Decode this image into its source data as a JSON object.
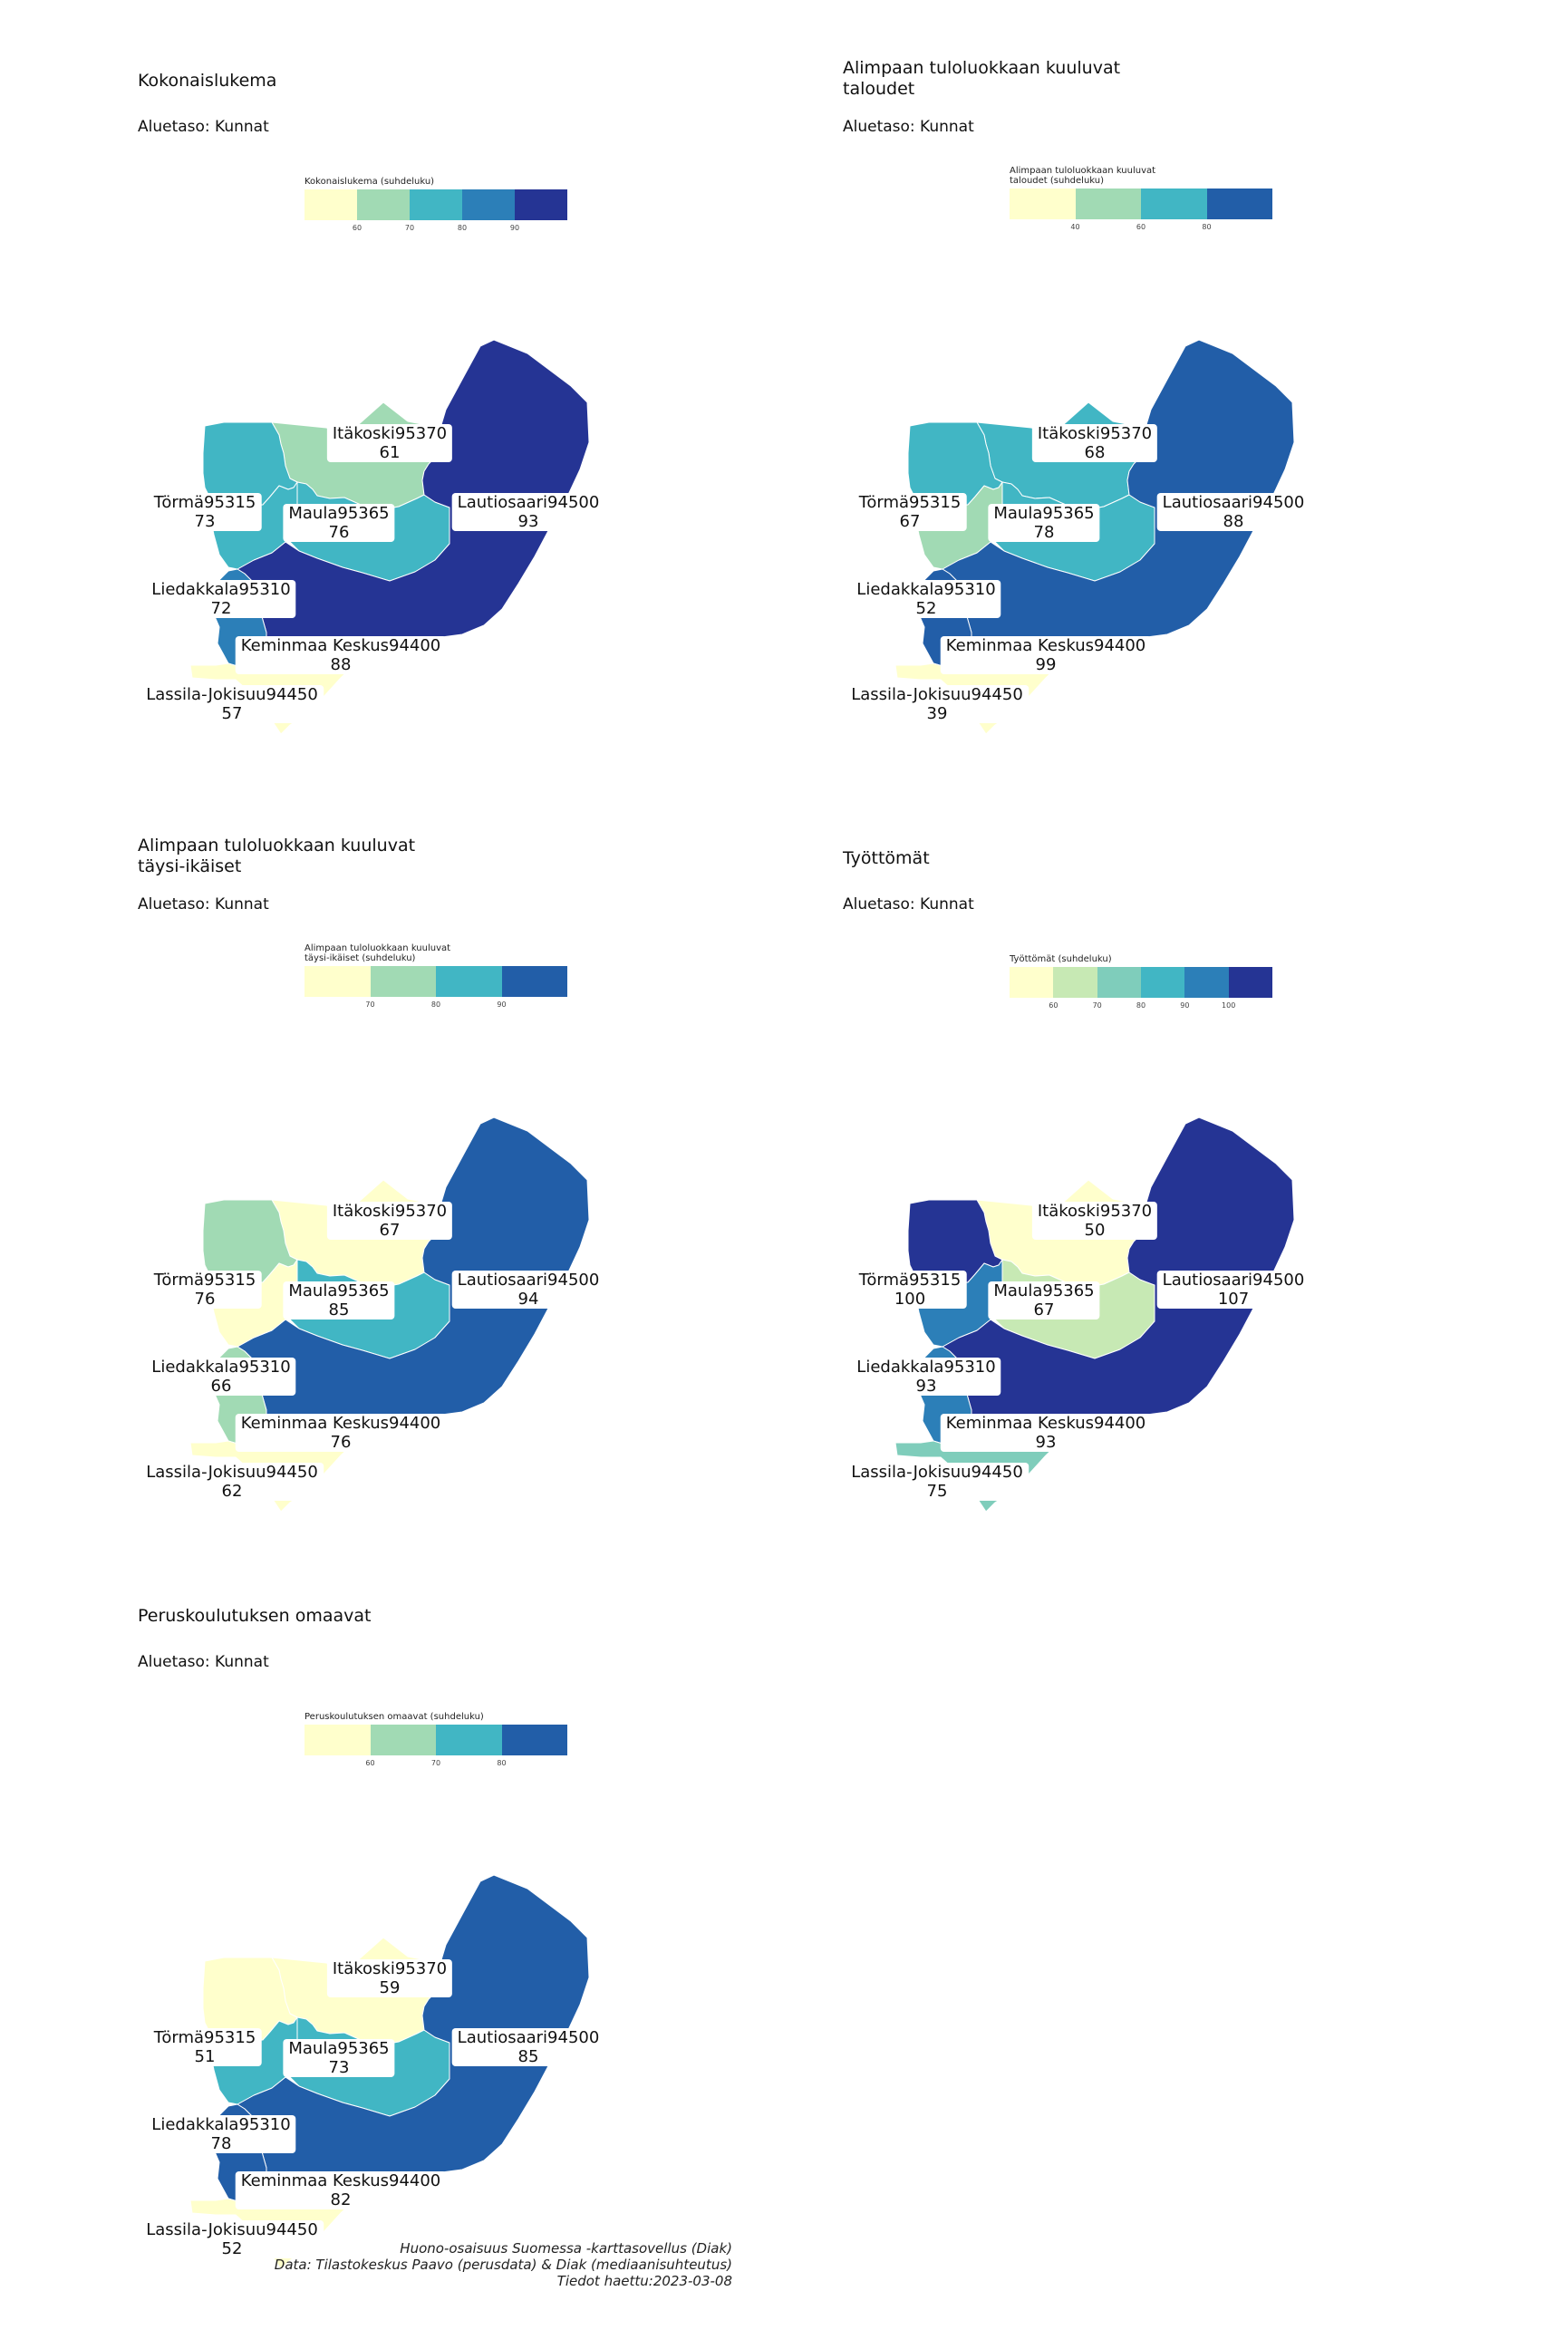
{
  "panels": [
    {
      "title": "Kokonaislukema",
      "subtitle": "Aluetaso: Kunnat",
      "legend": {
        "title": "Kokonaislukema (suhdeluku)",
        "colors": [
          "#ffffcc",
          "#a1dab4",
          "#41b6c4",
          "#2c7fb8",
          "#253494"
        ],
        "ticks": [
          "60",
          "70",
          "80",
          "90"
        ]
      },
      "regions": [
        {
          "name": "Itäkoski95370",
          "value": "61",
          "color": "#a1dab4"
        },
        {
          "name": "Törmä95315",
          "value": "73",
          "color": "#41b6c4"
        },
        {
          "name": "Maula95365",
          "value": "76",
          "color": "#41b6c4"
        },
        {
          "name": "Lautiosaari94500",
          "value": "93",
          "color": "#253494"
        },
        {
          "name": "Liedakkala95310",
          "value": "72",
          "color": "#41b6c4"
        },
        {
          "name": "Keminmaa Keskus94400",
          "value": "88",
          "color": "#2c7fb8"
        },
        {
          "name": "Lassila-Jokisuu94450",
          "value": "57",
          "color": "#ffffcc"
        }
      ]
    },
    {
      "title": "Alimpaan tuloluokkaan kuuluvat\ntaloudet",
      "subtitle": "Aluetaso: Kunnat",
      "legend": {
        "title": "Alimpaan tuloluokkaan kuuluvat\ntaloudet (suhdeluku)",
        "colors": [
          "#ffffcc",
          "#a1dab4",
          "#41b6c4",
          "#225ea8"
        ],
        "ticks": [
          "40",
          "60",
          "80"
        ]
      },
      "regions": [
        {
          "name": "Itäkoski95370",
          "value": "68",
          "color": "#41b6c4"
        },
        {
          "name": "Törmä95315",
          "value": "67",
          "color": "#41b6c4"
        },
        {
          "name": "Maula95365",
          "value": "78",
          "color": "#41b6c4"
        },
        {
          "name": "Lautiosaari94500",
          "value": "88",
          "color": "#225ea8"
        },
        {
          "name": "Liedakkala95310",
          "value": "52",
          "color": "#a1dab4"
        },
        {
          "name": "Keminmaa Keskus94400",
          "value": "99",
          "color": "#225ea8"
        },
        {
          "name": "Lassila-Jokisuu94450",
          "value": "39",
          "color": "#ffffcc"
        }
      ]
    },
    {
      "title": "Alimpaan tuloluokkaan kuuluvat\ntäysi-ikäiset",
      "subtitle": "Aluetaso: Kunnat",
      "legend": {
        "title": "Alimpaan tuloluokkaan kuuluvat\ntäysi-ikäiset (suhdeluku)",
        "colors": [
          "#ffffcc",
          "#a1dab4",
          "#41b6c4",
          "#225ea8"
        ],
        "ticks": [
          "70",
          "80",
          "90"
        ]
      },
      "regions": [
        {
          "name": "Itäkoski95370",
          "value": "67",
          "color": "#ffffcc"
        },
        {
          "name": "Törmä95315",
          "value": "76",
          "color": "#a1dab4"
        },
        {
          "name": "Maula95365",
          "value": "85",
          "color": "#41b6c4"
        },
        {
          "name": "Lautiosaari94500",
          "value": "94",
          "color": "#225ea8"
        },
        {
          "name": "Liedakkala95310",
          "value": "66",
          "color": "#ffffcc"
        },
        {
          "name": "Keminmaa Keskus94400",
          "value": "76",
          "color": "#a1dab4"
        },
        {
          "name": "Lassila-Jokisuu94450",
          "value": "62",
          "color": "#ffffcc"
        }
      ]
    },
    {
      "title": "Työttömät",
      "subtitle": "Aluetaso: Kunnat",
      "legend": {
        "title": "Työttömät (suhdeluku)",
        "colors": [
          "#ffffcc",
          "#c7e9b4",
          "#7fcdbb",
          "#41b6c4",
          "#2c7fb8",
          "#253494"
        ],
        "ticks": [
          "60",
          "70",
          "80",
          "90",
          "100"
        ]
      },
      "regions": [
        {
          "name": "Itäkoski95370",
          "value": "50",
          "color": "#ffffcc"
        },
        {
          "name": "Törmä95315",
          "value": "100",
          "color": "#253494"
        },
        {
          "name": "Maula95365",
          "value": "67",
          "color": "#c7e9b4"
        },
        {
          "name": "Lautiosaari94500",
          "value": "107",
          "color": "#253494"
        },
        {
          "name": "Liedakkala95310",
          "value": "93",
          "color": "#2c7fb8"
        },
        {
          "name": "Keminmaa Keskus94400",
          "value": "93",
          "color": "#2c7fb8"
        },
        {
          "name": "Lassila-Jokisuu94450",
          "value": "75",
          "color": "#7fcdbb"
        }
      ]
    },
    {
      "title": "Peruskoulutuksen omaavat",
      "subtitle": "Aluetaso: Kunnat",
      "legend": {
        "title": "Peruskoulutuksen omaavat (suhdeluku)",
        "colors": [
          "#ffffcc",
          "#a1dab4",
          "#41b6c4",
          "#225ea8"
        ],
        "ticks": [
          "60",
          "70",
          "80"
        ]
      },
      "regions": [
        {
          "name": "Itäkoski95370",
          "value": "59",
          "color": "#ffffcc"
        },
        {
          "name": "Törmä95315",
          "value": "51",
          "color": "#ffffcc"
        },
        {
          "name": "Maula95365",
          "value": "73",
          "color": "#41b6c4"
        },
        {
          "name": "Lautiosaari94500",
          "value": "85",
          "color": "#225ea8"
        },
        {
          "name": "Liedakkala95310",
          "value": "78",
          "color": "#41b6c4"
        },
        {
          "name": "Keminmaa Keskus94400",
          "value": "82",
          "color": "#225ea8"
        },
        {
          "name": "Lassila-Jokisuu94450",
          "value": "52",
          "color": "#ffffcc"
        }
      ]
    }
  ],
  "caption": {
    "line1": "Huono-osaisuus Suomessa -karttasovellus (Diak)",
    "line2": "Data: Tilastokeskus Paavo (perusdata) & Diak (mediaanisuhteutus)",
    "line3": "Tiedot haettu:2023-03-08"
  }
}
